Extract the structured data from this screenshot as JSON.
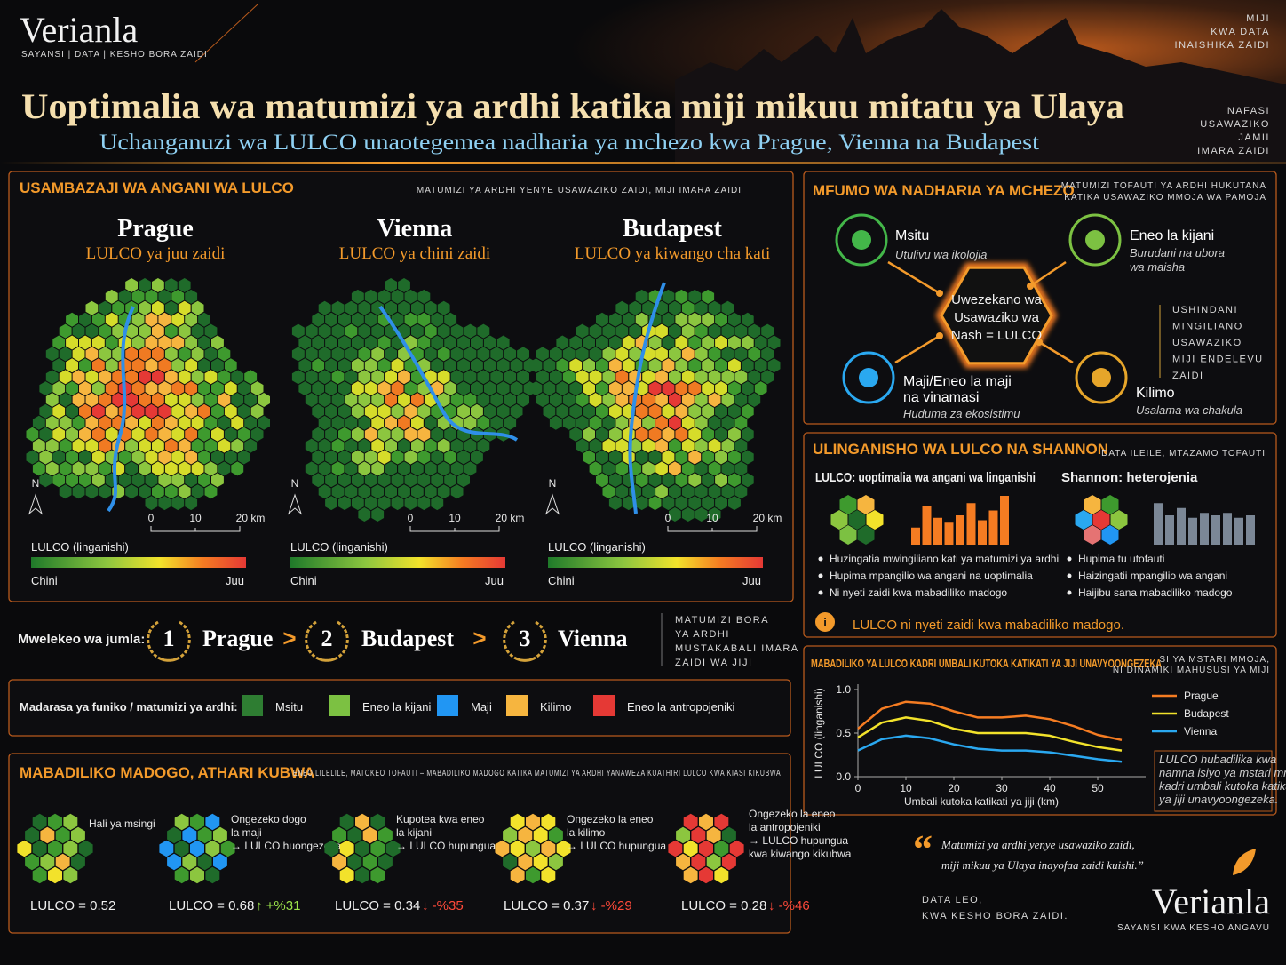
{
  "header": {
    "brand": "Verianla",
    "tagline": "SAYANSI | DATA | KESHO BORA ZAIDI",
    "title": "Uoptimalia wa matumizi ya ardhi katika miji mikuu mitatu ya Ulaya",
    "subtitle": "Uchanganuzi wa LULCO unaotegemea nadharia ya mchezo kwa Prague, Vienna na Budapest",
    "corner_top": [
      "MIJI",
      "KWA DATA",
      "INAISHIKA ZAIDI"
    ],
    "corner_right": [
      "NAFASI",
      "USAWAZIKO",
      "JAMII",
      "IMARA ZAIDI"
    ]
  },
  "spatial": {
    "title": "USAMBAZAJI WA ANGANI WA LULCO",
    "note": "MATUMIZI YA ARDHI YENYE USAWAZIKO ZAIDI, MIJI IMARA ZAIDI",
    "north": "N",
    "scale": [
      "0",
      "10",
      "20 km"
    ],
    "legend_title": "LULCO (linganishi)",
    "low": "Chini",
    "high": "Juu",
    "cities": [
      {
        "name": "Prague",
        "label": "LULCO ya juu zaidi"
      },
      {
        "name": "Vienna",
        "label": "LULCO ya chini zaidi"
      },
      {
        "name": "Budapest",
        "label": "LULCO ya kiwango cha kati"
      }
    ]
  },
  "ranking": {
    "label": "Mwelekeo wa jumla:",
    "separator": ">",
    "items": [
      {
        "rank": "1",
        "city": "Prague"
      },
      {
        "rank": "2",
        "city": "Budapest"
      },
      {
        "rank": "3",
        "city": "Vienna"
      }
    ],
    "note": [
      "MATUMIZI BORA",
      "YA ARDHI",
      "MUSTAKABALI IMARA",
      "ZAIDI WA JIJI"
    ]
  },
  "classes": {
    "label": "Madarasa ya funiko / matumizi ya ardhi:",
    "items": [
      {
        "name": "Msitu",
        "color": "#2e7d32"
      },
      {
        "name": "Eneo la kijani",
        "color": "#7cc142"
      },
      {
        "name": "Maji",
        "color": "#2196f3"
      },
      {
        "name": "Kilimo",
        "color": "#f6b53f"
      },
      {
        "name": "Eneo la antropojeniki",
        "color": "#e53935"
      }
    ]
  },
  "small_changes": {
    "title": "MABADILIKO MADOGO, ATHARI KUBWA",
    "note": "ENEO LILELILE, MATOKEO TOFAUTI – MABADILIKO MADOGO KATIKA MATUMIZI YA ARDHI YANAWEZA KUATHIRI LULCO KWA KIASI KIKUBWA.",
    "scenarios": [
      {
        "label": [
          "Hali ya msingi"
        ],
        "value": "LULCO = 0.52"
      },
      {
        "label": [
          "Ongezeko dogo",
          "la maji",
          "→ LULCO huongezeka"
        ],
        "value": "LULCO = 0.68",
        "change": "↑ +%31"
      },
      {
        "label": [
          "Kupotea kwa eneo",
          "la kijani",
          "→ LULCO hupungua"
        ],
        "value": "LULCO = 0.34",
        "change": "↓ -%35"
      },
      {
        "label": [
          "Ongezeko la eneo",
          "la kilimo",
          "→ LULCO hupungua"
        ],
        "value": "LULCO = 0.37",
        "change": "↓ -%29"
      },
      {
        "label": [
          "Ongezeko la eneo",
          "la antropojeniki",
          "→ LULCO hupungua",
          "kwa kiwango kikubwa"
        ],
        "value": "LULCO = 0.28",
        "change": "↓ -%46"
      }
    ]
  },
  "game_theory": {
    "title": "MFUMO WA NADHARIA YA MCHEZO",
    "note": [
      "MATUMIZI TOFAUTI YA ARDHI HUKUTANA",
      "KATIKA USAWAZIKO MMOJA WA PAMOJA"
    ],
    "center": [
      "Uwezekano wa",
      "Usawaziko wa",
      "Nash = LULCO"
    ],
    "nodes": [
      {
        "label": [
          "Msitu"
        ],
        "sub": [
          "Utulivu wa ikolojia"
        ]
      },
      {
        "label": [
          "Eneo la kijani"
        ],
        "sub": [
          "Burudani na ubora",
          "wa maisha"
        ]
      },
      {
        "label": [
          "Maji/Eneo la maji",
          "na vinamasi"
        ],
        "sub": [
          "Huduma za ekosistimu"
        ]
      },
      {
        "label": [
          "Kilimo"
        ],
        "sub": [
          "Usalama wa chakula"
        ]
      }
    ],
    "side": [
      "USHINDANI",
      "MINGILIANO",
      "USAWAZIKO",
      "MIJI ENDELEVU",
      "ZAIDI"
    ]
  },
  "shannon": {
    "title": "ULINGANISHO WA LULCO NA SHANNON",
    "note": "DATA ILEILE, MTAZAMO TOFAUTI",
    "left": {
      "title": "LULCO: uoptimalia wa angani wa linganishi",
      "bullets": [
        "Huzingatia mwingiliano kati ya matumizi ya ardhi",
        "Hupima mpangilio wa angani na uoptimalia",
        "Ni nyeti zaidi kwa mabadiliko madogo"
      ]
    },
    "right": {
      "title": "Shannon: heterojenia",
      "bullets": [
        "Hupima tu utofauti",
        "Haizingatii mpangilio wa angani",
        "Haijibu sana mabadiliko madogo"
      ]
    },
    "info": "i",
    "callout": "LULCO ni nyeti zaidi kwa mabadiliko madogo."
  },
  "chart_data": {
    "type": "line",
    "title": "MABADILIKO YA LULCO KADRI UMBALI KUTOKA KATIKATI YA JIJI UNAVYOONGEZEKA",
    "note": [
      "SI YA MSTARI MMOJA,",
      "NI DINAMIKI MAHUSUSI YA MIJI"
    ],
    "ylabel": "LULCO (linganishi)",
    "xlabel": "Umbali kutoka katikati ya jiji (km)",
    "x": [
      0,
      5,
      10,
      15,
      20,
      25,
      30,
      35,
      40,
      45,
      50,
      55
    ],
    "series": [
      {
        "name": "Prague",
        "color": "#f57c22",
        "values": [
          0.55,
          0.78,
          0.86,
          0.84,
          0.75,
          0.68,
          0.68,
          0.7,
          0.66,
          0.58,
          0.48,
          0.42
        ]
      },
      {
        "name": "Budapest",
        "color": "#f2e22b",
        "values": [
          0.45,
          0.62,
          0.68,
          0.64,
          0.55,
          0.5,
          0.5,
          0.5,
          0.47,
          0.4,
          0.34,
          0.3
        ]
      },
      {
        "name": "Vienna",
        "color": "#2aa8f0",
        "values": [
          0.3,
          0.43,
          0.47,
          0.44,
          0.37,
          0.32,
          0.3,
          0.3,
          0.28,
          0.24,
          0.2,
          0.17
        ]
      }
    ],
    "xlim": [
      0,
      60
    ],
    "ylim": [
      0,
      1
    ],
    "xticks": [
      0,
      10,
      20,
      30,
      40,
      50
    ],
    "yticks": [
      {
        "value": 0,
        "label": "0.0"
      },
      0.5,
      {
        "value": 1,
        "label": "1.0"
      }
    ],
    "caption": [
      "LULCO hubadilika kwa",
      "namna isiyo ya mstari mmoja",
      "kadri umbali kutoka katikati",
      "ya jiji unavyoongezeka."
    ]
  },
  "quote": {
    "mark": "“",
    "lines": [
      "Matumizi ya ardhi yenye usawaziko zaidi,",
      "miji mikuu ya Ulaya inayofaa zaidi kuishi.”"
    ],
    "footer": [
      "DATA LEO,",
      "KWA KESHO BORA ZAIDI."
    ],
    "brand": "Verianla",
    "tagline": "SAYANSI KWA KESHO ANGAVU"
  }
}
